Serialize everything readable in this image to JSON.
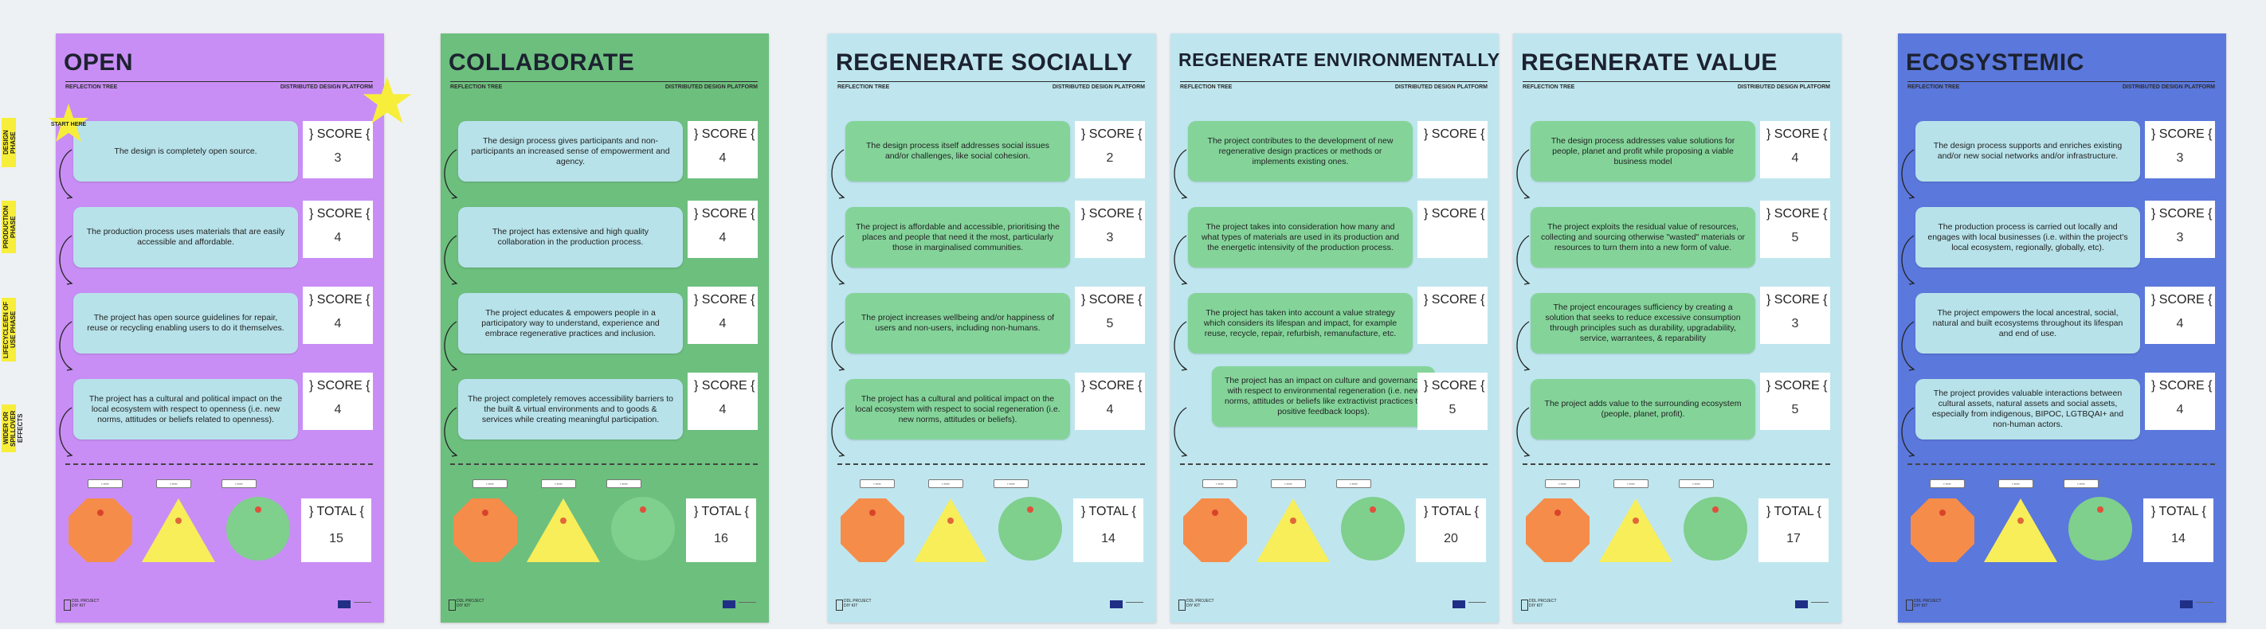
{
  "side_labels": [
    {
      "text": "DESIGN PHASE"
    },
    {
      "text": "PRODUCTION PHASE"
    },
    {
      "text": "LIFECYCLE/EN OF USE PHASE"
    },
    {
      "text": "WIDER OR SPILLOVER EFFECTS"
    }
  ],
  "start_star": {
    "text": "START HERE"
  },
  "subline": {
    "left": "REFLECTION TREE",
    "right": "DISTRIBUTED DESIGN PLATFORM"
  },
  "score_label": "} SCORE {",
  "total_label": "} TOTAL {",
  "footer_logo": "DDL PROJECT DIY KIT",
  "panels": [
    {
      "title": "OPEN",
      "color": "#c98ef5",
      "card_color": "blue",
      "cards": [
        {
          "text": "The design is completely open source.",
          "score": "3"
        },
        {
          "text": "The production process uses materials that are easily accessible and affordable.",
          "score": "4"
        },
        {
          "text": "The project has open source guidelines for repair, reuse or recycling enabling users to do it themselves.",
          "score": "4"
        },
        {
          "text": "The project has a cultural and political impact on the local ecosystem with respect to openness (i.e. new norms, attitudes or beliefs related to openness).",
          "score": "4"
        }
      ],
      "total": "15"
    },
    {
      "title": "COLLABORATE",
      "color": "#6dbf7e",
      "card_color": "blue",
      "cards": [
        {
          "text": "The design process gives participants and non-participants an increased sense of empowerment and agency.",
          "score": "4"
        },
        {
          "text": "The project has extensive and high quality collaboration in the production process.",
          "score": "4"
        },
        {
          "text": "The project educates & empowers people in a participatory way to understand, experience and embrace regenerative practices and inclusion.",
          "score": "4"
        },
        {
          "text": "The project completely removes accessibility barriers to the built & virtual environments and to goods & services while creating meaningful participation.",
          "score": "4"
        }
      ],
      "total": "16"
    },
    {
      "title": "REGENERATE SOCIALLY",
      "color": "#bfe6ee",
      "card_color": "green",
      "cards": [
        {
          "text": "The design process itself addresses social issues and/or challenges, like social cohesion.",
          "score": "2"
        },
        {
          "text": "The project is affordable and accessible, prioritising the places and people that need it the most, particularly those in marginalised communities.",
          "score": "3"
        },
        {
          "text": "The project increases wellbeing and/or happiness of users and non-users, including non-humans.",
          "score": "5"
        },
        {
          "text": "The project has a cultural and political impact on the local ecosystem with respect to social regeneration (i.e. new norms, attitudes or beliefs).",
          "score": "4"
        }
      ],
      "total": "14"
    },
    {
      "title": "REGENERATE ENVIRONMENTALLY",
      "color": "#bfe6ee",
      "card_color": "green",
      "cards": [
        {
          "text": "The project contributes to the development of new regenerative design practices or methods or implements existing ones.",
          "score": ""
        },
        {
          "text": "The project takes into consideration how many and what types of materials are used in its production and the energetic intensivity of the production process.",
          "score": ""
        },
        {
          "text": "The project has taken into account a value strategy which considers its lifespan and impact, for example reuse, recycle, repair, refurbish, remanufacture, etc.",
          "score": ""
        },
        {
          "text": "The project has an impact on culture and governance with respect to environmental regeneration (i.e. new norms, attitudes or beliefs like extractivist practices to positive feedback loops).",
          "score": "5"
        }
      ],
      "total": "20"
    },
    {
      "title": "REGENERATE VALUE",
      "color": "#bfe6ee",
      "card_color": "green",
      "cards": [
        {
          "text": "The design process addresses value solutions for people, planet and profit while proposing a viable business model",
          "score": "4"
        },
        {
          "text": "The project exploits the residual value of resources, collecting and sourcing otherwise \"wasted\" materials or resources to turn them into a new form of value.",
          "score": "5"
        },
        {
          "text": "The project encourages sufficiency by creating a solution that seeks to reduce excessive consumption through principles such as durability, upgradability, service, warrantees, & reparability",
          "score": "3"
        },
        {
          "text": "The project adds value to the surrounding ecosystem (people, planet, profit).",
          "score": "5"
        }
      ],
      "total": "17"
    },
    {
      "title": "ECOSYSTEMIC",
      "color": "#5b78dc",
      "card_color": "blue",
      "cards": [
        {
          "text": "The design process supports and enriches existing and/or new social networks and/or infrastructure.",
          "score": "3"
        },
        {
          "text": "The production process is carried out locally and engages with local businesses (i.e. within the project's local ecosystem, regionally, globally, etc).",
          "score": "3"
        },
        {
          "text": "The project empowers the local ancestral, social, natural and built ecosystems throughout its lifespan and end of use.",
          "score": "4"
        },
        {
          "text": "The project provides valuable interactions between cultural assets, natural assets and social assets, especially from indigenous, BIPOC, LGTBQAI+ and non-human actors.",
          "score": "4"
        }
      ],
      "total": "14"
    }
  ],
  "shape_colors": {
    "octagon": "#f58c4a",
    "triangle": "#f7ee5a",
    "circle": "#7fcf8d"
  },
  "star_color": "#f7ee3b"
}
